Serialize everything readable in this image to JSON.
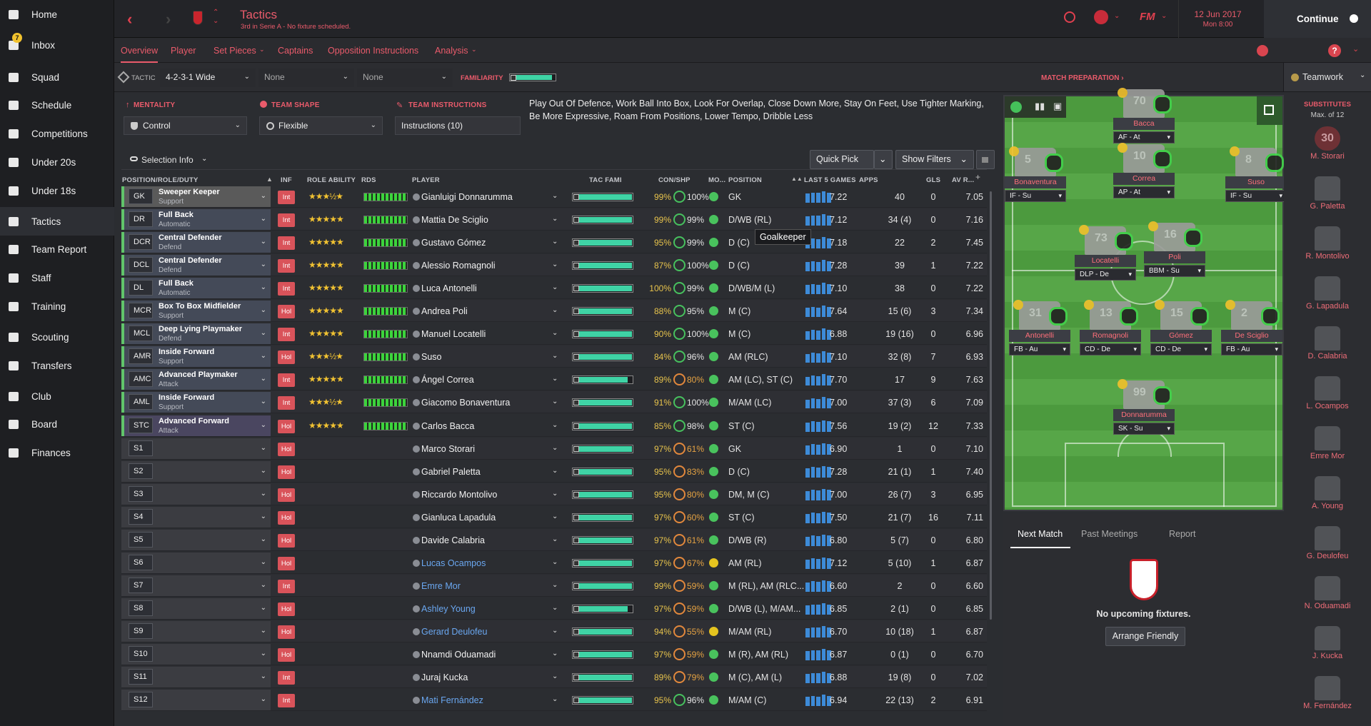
{
  "sidebar": {
    "inbox_badge": "7",
    "items": [
      {
        "label": "Home",
        "icon": "home-icon"
      },
      {
        "label": "Inbox",
        "icon": "inbox-icon"
      },
      {
        "label": "Squad",
        "icon": "squad-icon"
      },
      {
        "label": "Schedule",
        "icon": "calendar-icon"
      },
      {
        "label": "Competitions",
        "icon": "trophy-icon"
      },
      {
        "label": "Under 20s",
        "icon": "u20-icon"
      },
      {
        "label": "Under 18s",
        "icon": "u18-icon"
      },
      {
        "label": "Tactics",
        "icon": "tactics-icon"
      },
      {
        "label": "Team Report",
        "icon": "report-icon"
      },
      {
        "label": "Staff",
        "icon": "staff-icon"
      },
      {
        "label": "Training",
        "icon": "training-icon"
      },
      {
        "label": "Scouting",
        "icon": "search-icon"
      },
      {
        "label": "Transfers",
        "icon": "transfers-icon"
      },
      {
        "label": "Club",
        "icon": "shield-icon"
      },
      {
        "label": "Board",
        "icon": "board-icon"
      },
      {
        "label": "Finances",
        "icon": "money-icon"
      }
    ]
  },
  "header": {
    "title": "Tactics",
    "subtitle": "3rd in Serie A - No fixture scheduled.",
    "date": "12 Jun 2017",
    "time": "Mon 8:00",
    "continue": "Continue"
  },
  "tabs": [
    "Overview",
    "Player",
    "Set Pieces",
    "Captains",
    "Opposition Instructions",
    "Analysis"
  ],
  "tactic": {
    "label": "TACTIC",
    "formation": "4-2-3-1 Wide",
    "slot2": "None",
    "slot3": "None",
    "familiarity_label": "FAMILIARITY",
    "match_prep": "MATCH PREPARATION ›",
    "teamwork": "Teamwork",
    "mentality_label": "MENTALITY",
    "mentality": "Control",
    "shape_label": "TEAM SHAPE",
    "shape": "Flexible",
    "instr_label": "TEAM INSTRUCTIONS",
    "instr": "Instructions (10)",
    "instr_text": "Play Out Of Defence, Work Ball Into Box, Look For Overlap, Close Down More, Stay On Feet, Use Tighter Marking, Be More Expressive, Roam From Positions, Lower Tempo, Dribble Less"
  },
  "toolbar": {
    "selection_info": "Selection Info",
    "quick_pick": "Quick Pick",
    "show_filters": "Show Filters"
  },
  "columns": {
    "pos": "POSITION/ROLE/DUTY",
    "inf": "INF",
    "role": "ROLE ABILITY",
    "rds": "RDS",
    "player": "PLAYER",
    "fam": "TAC FAMI",
    "con": "CON/SHP",
    "mo": "MO...",
    "position": "POSITION",
    "last5": "LAST 5 GAMES",
    "apps": "APPS",
    "gls": "GLS",
    "av": "AV R..."
  },
  "tooltip": "Goalkeeper",
  "rows": [
    {
      "pos": "GK",
      "role": "Sweeper Keeper",
      "duty": "Support",
      "inf": "Int",
      "stars": "★★★½★",
      "player": "Gianluigi Donnarumma",
      "fam": 0.98,
      "con": "99%",
      "shp": "100%",
      "mo": "g",
      "position": "GK",
      "rat": "7.22",
      "apps": "40",
      "gls": "0",
      "av": "7.05",
      "loan": false
    },
    {
      "pos": "DR",
      "role": "Full Back",
      "duty": "Automatic",
      "inf": "Int",
      "stars": "★★★★★",
      "player": "Mattia De Sciglio",
      "fam": 0.98,
      "con": "99%",
      "shp": "99%",
      "mo": "g",
      "position": "D/WB (RL)",
      "rat": "7.12",
      "apps": "34 (4)",
      "gls": "0",
      "av": "7.16",
      "loan": false
    },
    {
      "pos": "DCR",
      "role": "Central Defender",
      "duty": "Defend",
      "inf": "Int",
      "stars": "★★★★★",
      "player": "Gustavo Gómez",
      "fam": 0.98,
      "con": "95%",
      "shp": "99%",
      "mo": "g",
      "position": "D (C)",
      "rat": "7.18",
      "apps": "22",
      "gls": "2",
      "av": "7.45",
      "loan": false
    },
    {
      "pos": "DCL",
      "role": "Central Defender",
      "duty": "Defend",
      "inf": "Int",
      "stars": "★★★★★",
      "player": "Alessio Romagnoli",
      "fam": 0.98,
      "con": "87%",
      "shp": "100%",
      "mo": "g",
      "position": "D (C)",
      "rat": "7.28",
      "apps": "39",
      "gls": "1",
      "av": "7.22",
      "loan": false
    },
    {
      "pos": "DL",
      "role": "Full Back",
      "duty": "Automatic",
      "inf": "Int",
      "stars": "★★★★★",
      "player": "Luca Antonelli",
      "fam": 0.98,
      "con": "100%",
      "shp": "99%",
      "mo": "g",
      "position": "D/WB/M (L)",
      "rat": "7.10",
      "apps": "38",
      "gls": "0",
      "av": "7.22",
      "loan": false
    },
    {
      "pos": "MCR",
      "role": "Box To Box Midfielder",
      "duty": "Support",
      "inf": "Hol",
      "stars": "★★★★★",
      "player": "Andrea Poli",
      "fam": 0.98,
      "con": "88%",
      "shp": "95%",
      "mo": "g",
      "position": "M (C)",
      "rat": "7.64",
      "apps": "15 (6)",
      "gls": "3",
      "av": "7.34",
      "loan": false
    },
    {
      "pos": "MCL",
      "role": "Deep Lying Playmaker",
      "duty": "Defend",
      "inf": "Int",
      "stars": "★★★★★",
      "player": "Manuel Locatelli",
      "fam": 0.98,
      "con": "90%",
      "shp": "100%",
      "mo": "g",
      "position": "M (C)",
      "rat": "6.88",
      "apps": "19 (16)",
      "gls": "0",
      "av": "6.96",
      "loan": false
    },
    {
      "pos": "AMR",
      "role": "Inside Forward",
      "duty": "Support",
      "inf": "Hol",
      "stars": "★★★½★",
      "player": "Suso",
      "fam": 0.98,
      "con": "84%",
      "shp": "96%",
      "mo": "g",
      "position": "AM (RLC)",
      "rat": "7.10",
      "apps": "32 (8)",
      "gls": "7",
      "av": "6.93",
      "loan": false
    },
    {
      "pos": "AMC",
      "role": "Advanced Playmaker",
      "duty": "Attack",
      "inf": "Int",
      "stars": "★★★★★",
      "player": "Ángel Correa",
      "fam": 0.9,
      "con": "89%",
      "shp": "80%",
      "mo": "g",
      "position": "AM (LC), ST (C)",
      "rat": "7.70",
      "apps": "17",
      "gls": "9",
      "av": "7.63",
      "loan": false
    },
    {
      "pos": "AML",
      "role": "Inside Forward",
      "duty": "Support",
      "inf": "Int",
      "stars": "★★★½★",
      "player": "Giacomo Bonaventura",
      "fam": 0.98,
      "con": "91%",
      "shp": "100%",
      "mo": "g",
      "position": "M/AM (LC)",
      "rat": "7.00",
      "apps": "37 (3)",
      "gls": "6",
      "av": "7.09",
      "loan": false
    },
    {
      "pos": "STC",
      "role": "Advanced Forward",
      "duty": "Attack",
      "inf": "Hol",
      "stars": "★★★★★",
      "player": "Carlos Bacca",
      "fam": 0.98,
      "con": "85%",
      "shp": "98%",
      "mo": "g",
      "position": "ST (C)",
      "rat": "7.56",
      "apps": "19 (2)",
      "gls": "12",
      "av": "7.33",
      "loan": false
    },
    {
      "pos": "S1",
      "role": "",
      "duty": "",
      "inf": "Hol",
      "stars": "",
      "player": "Marco Storari",
      "fam": 0.98,
      "con": "97%",
      "shp": "61%",
      "mo": "g",
      "position": "GK",
      "rat": "6.90",
      "apps": "1",
      "gls": "0",
      "av": "7.10",
      "loan": false
    },
    {
      "pos": "S2",
      "role": "",
      "duty": "",
      "inf": "Hol",
      "stars": "",
      "player": "Gabriel Paletta",
      "fam": 0.98,
      "con": "95%",
      "shp": "83%",
      "mo": "g",
      "position": "D (C)",
      "rat": "7.28",
      "apps": "21 (1)",
      "gls": "1",
      "av": "7.40",
      "loan": false
    },
    {
      "pos": "S3",
      "role": "",
      "duty": "",
      "inf": "Hol",
      "stars": "",
      "player": "Riccardo Montolivo",
      "fam": 0.98,
      "con": "95%",
      "shp": "80%",
      "mo": "g",
      "position": "DM, M (C)",
      "rat": "7.00",
      "apps": "26 (7)",
      "gls": "3",
      "av": "6.95",
      "loan": false
    },
    {
      "pos": "S4",
      "role": "",
      "duty": "",
      "inf": "Hol",
      "stars": "",
      "player": "Gianluca Lapadula",
      "fam": 0.98,
      "con": "97%",
      "shp": "60%",
      "mo": "g",
      "position": "ST (C)",
      "rat": "7.50",
      "apps": "21 (7)",
      "gls": "16",
      "av": "7.11",
      "loan": false
    },
    {
      "pos": "S5",
      "role": "",
      "duty": "",
      "inf": "Hol",
      "stars": "",
      "player": "Davide Calabria",
      "fam": 0.98,
      "con": "97%",
      "shp": "61%",
      "mo": "g",
      "position": "D/WB (R)",
      "rat": "6.80",
      "apps": "5 (7)",
      "gls": "0",
      "av": "6.80",
      "loan": false
    },
    {
      "pos": "S6",
      "role": "",
      "duty": "",
      "inf": "Hol",
      "stars": "",
      "player": "Lucas Ocampos",
      "fam": 0.98,
      "con": "97%",
      "shp": "67%",
      "mo": "y",
      "position": "AM (RL)",
      "rat": "7.12",
      "apps": "5 (10)",
      "gls": "1",
      "av": "6.87",
      "loan": true
    },
    {
      "pos": "S7",
      "role": "",
      "duty": "",
      "inf": "Int",
      "stars": "",
      "player": "Emre Mor",
      "fam": 0.98,
      "con": "99%",
      "shp": "59%",
      "mo": "g",
      "position": "M (RL), AM (RLC...",
      "rat": "6.60",
      "apps": "2",
      "gls": "0",
      "av": "6.60",
      "loan": true
    },
    {
      "pos": "S8",
      "role": "",
      "duty": "",
      "inf": "Hol",
      "stars": "",
      "player": "Ashley Young",
      "fam": 0.9,
      "con": "97%",
      "shp": "59%",
      "mo": "g",
      "position": "D/WB (L), M/AM...",
      "rat": "6.85",
      "apps": "2 (1)",
      "gls": "0",
      "av": "6.85",
      "loan": true
    },
    {
      "pos": "S9",
      "role": "",
      "duty": "",
      "inf": "Hol",
      "stars": "",
      "player": "Gerard Deulofeu",
      "fam": 0.98,
      "con": "94%",
      "shp": "55%",
      "mo": "y",
      "position": "M/AM (RL)",
      "rat": "6.70",
      "apps": "10 (18)",
      "gls": "1",
      "av": "6.87",
      "loan": true
    },
    {
      "pos": "S10",
      "role": "",
      "duty": "",
      "inf": "Hol",
      "stars": "",
      "player": "Nnamdi Oduamadi",
      "fam": 0.98,
      "con": "97%",
      "shp": "59%",
      "mo": "g",
      "position": "M (R), AM (RL)",
      "rat": "6.87",
      "apps": "0 (1)",
      "gls": "0",
      "av": "6.70",
      "loan": false
    },
    {
      "pos": "S11",
      "role": "",
      "duty": "",
      "inf": "Int",
      "stars": "",
      "player": "Juraj Kucka",
      "fam": 0.98,
      "con": "89%",
      "shp": "79%",
      "mo": "g",
      "position": "M (C), AM (L)",
      "rat": "6.88",
      "apps": "19 (8)",
      "gls": "0",
      "av": "7.02",
      "loan": false
    },
    {
      "pos": "S12",
      "role": "",
      "duty": "",
      "inf": "Int",
      "stars": "",
      "player": "Mati Fernández",
      "fam": 0.98,
      "con": "95%",
      "shp": "96%",
      "mo": "g",
      "position": "M/AM (C)",
      "rat": "6.94",
      "apps": "22 (13)",
      "gls": "2",
      "av": "6.91",
      "loan": true
    }
  ],
  "pitch_players": [
    {
      "name": "Bacca",
      "num": "70",
      "role": "AF - At"
    },
    {
      "name": "Bonaventura",
      "num": "5",
      "role": "IF - Su"
    },
    {
      "name": "Correa",
      "num": "10",
      "role": "AP - At"
    },
    {
      "name": "Suso",
      "num": "8",
      "role": "IF - Su"
    },
    {
      "name": "Locatelli",
      "num": "73",
      "role": "DLP - De"
    },
    {
      "name": "Poli",
      "num": "16",
      "role": "BBM - Su"
    },
    {
      "name": "Antonelli",
      "num": "31",
      "role": "FB - Au"
    },
    {
      "name": "Romagnoli",
      "num": "13",
      "role": "CD - De"
    },
    {
      "name": "Gómez",
      "num": "15",
      "role": "CD - De"
    },
    {
      "name": "De Sciglio",
      "num": "2",
      "role": "FB - Au"
    },
    {
      "name": "Donnarumma",
      "num": "99",
      "role": "SK - Su"
    }
  ],
  "subs": {
    "title": "SUBSTITUTES",
    "max": "Max. of 12",
    "names": [
      "M. Storari",
      "G. Paletta",
      "R. Montolivo",
      "G. Lapadula",
      "D. Calabria",
      "L. Ocampos",
      "Emre Mor",
      "A. Young",
      "G. Deulofeu",
      "N. Oduamadi",
      "J. Kucka",
      "M. Fernández"
    ],
    "first_num": "30"
  },
  "next_match": {
    "tabs": [
      "Next Match",
      "Past Meetings",
      "Report"
    ],
    "text": "No upcoming fixtures.",
    "button": "Arrange Friendly"
  },
  "colors": {
    "accent": "#ea5b6b",
    "green": "#61c56b",
    "fam": "#3fd3a5"
  }
}
